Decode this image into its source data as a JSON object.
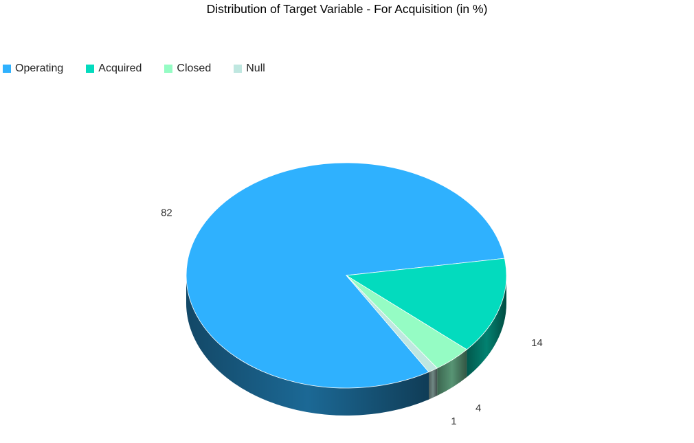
{
  "chart_data": {
    "type": "pie",
    "title": "Distribution of Target Variable - For Acquisition (in %)",
    "categories": [
      "Operating",
      "Acquired",
      "Closed",
      "Null"
    ],
    "values": [
      82,
      14,
      4,
      1
    ],
    "colors": [
      "#2fb1fe",
      "#03dbbe",
      "#95fcc4",
      "#bfe7e0"
    ],
    "legend_position": "top-left",
    "style": "3d"
  }
}
